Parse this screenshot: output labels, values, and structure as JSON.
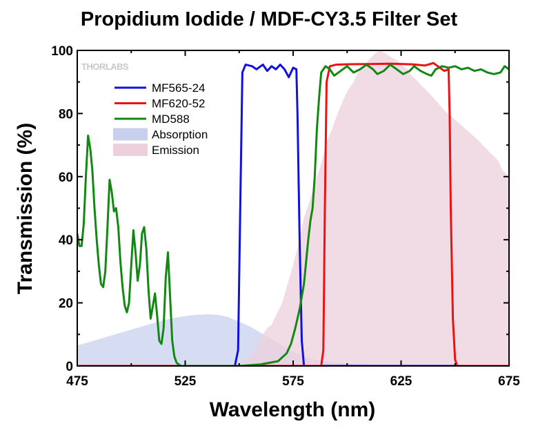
{
  "chart_data": {
    "type": "line",
    "title": "Propidium Iodide / MDF-CY3.5 Filter Set",
    "xlabel": "Wavelength (nm)",
    "ylabel": "Transmission (%)",
    "xlim": [
      475,
      675
    ],
    "ylim": [
      0,
      100
    ],
    "xticks": [
      475,
      525,
      575,
      625,
      675
    ],
    "yticks": [
      0,
      20,
      40,
      60,
      80,
      100
    ],
    "grid": false,
    "legend_position": "top-left",
    "logo": "THORLABS",
    "series": [
      {
        "name": "MF565-24",
        "kind": "line",
        "color": "#1010e0",
        "points": [
          [
            475,
            0
          ],
          [
            548,
            0
          ],
          [
            549.5,
            5
          ],
          [
            550.5,
            50
          ],
          [
            551.5,
            93
          ],
          [
            553,
            95.5
          ],
          [
            556,
            95
          ],
          [
            558,
            94
          ],
          [
            561,
            95.5
          ],
          [
            563,
            93.5
          ],
          [
            565,
            95
          ],
          [
            567,
            94
          ],
          [
            569,
            95.5
          ],
          [
            571,
            94
          ],
          [
            573,
            91.5
          ],
          [
            575,
            94.5
          ],
          [
            576.5,
            94
          ],
          [
            577,
            80
          ],
          [
            578,
            40
          ],
          [
            579,
            8
          ],
          [
            580,
            0
          ],
          [
            675,
            0
          ]
        ]
      },
      {
        "name": "MF620-52",
        "kind": "line",
        "color": "#ee1111",
        "points": [
          [
            475,
            0
          ],
          [
            588,
            0
          ],
          [
            589,
            5
          ],
          [
            589.7,
            50
          ],
          [
            590.5,
            90
          ],
          [
            592,
            95
          ],
          [
            595,
            95.5
          ],
          [
            600,
            95.6
          ],
          [
            610,
            95.7
          ],
          [
            620,
            95.8
          ],
          [
            630,
            95.6
          ],
          [
            636,
            95.2
          ],
          [
            640,
            96
          ],
          [
            645,
            93.5
          ],
          [
            647,
            94
          ],
          [
            647.5,
            80
          ],
          [
            648,
            50
          ],
          [
            649,
            15
          ],
          [
            650,
            2
          ],
          [
            651,
            0
          ],
          [
            675,
            0
          ]
        ]
      },
      {
        "name": "MD588",
        "kind": "line",
        "color": "#118811",
        "points": [
          [
            475,
            42
          ],
          [
            476,
            38
          ],
          [
            477,
            38
          ],
          [
            478,
            45
          ],
          [
            479,
            60
          ],
          [
            480,
            73
          ],
          [
            481,
            69
          ],
          [
            482,
            62
          ],
          [
            483,
            50
          ],
          [
            484,
            40
          ],
          [
            485,
            32
          ],
          [
            486,
            26
          ],
          [
            487,
            25
          ],
          [
            488,
            30
          ],
          [
            489,
            44
          ],
          [
            490,
            59
          ],
          [
            491,
            55
          ],
          [
            492,
            49
          ],
          [
            493,
            50
          ],
          [
            494,
            44
          ],
          [
            495,
            33
          ],
          [
            496,
            25
          ],
          [
            497,
            19
          ],
          [
            498,
            17
          ],
          [
            499,
            20
          ],
          [
            500,
            32
          ],
          [
            501,
            43
          ],
          [
            502,
            36
          ],
          [
            503,
            27
          ],
          [
            504,
            32
          ],
          [
            505,
            42
          ],
          [
            506,
            44
          ],
          [
            507,
            37
          ],
          [
            508,
            24
          ],
          [
            509,
            15
          ],
          [
            510,
            19
          ],
          [
            511,
            23
          ],
          [
            512,
            16
          ],
          [
            513,
            8
          ],
          [
            514,
            7
          ],
          [
            515,
            12
          ],
          [
            516,
            28
          ],
          [
            517,
            36
          ],
          [
            518,
            22
          ],
          [
            519,
            8
          ],
          [
            520,
            3
          ],
          [
            521,
            1
          ],
          [
            523,
            0
          ],
          [
            528,
            0
          ],
          [
            540,
            0
          ],
          [
            550,
            0
          ],
          [
            560,
            0.5
          ],
          [
            568,
            1.5
          ],
          [
            572,
            4
          ],
          [
            574,
            7
          ],
          [
            576,
            12
          ],
          [
            578,
            18
          ],
          [
            580,
            26
          ],
          [
            581,
            33
          ],
          [
            582,
            40
          ],
          [
            583,
            46
          ],
          [
            584,
            50
          ],
          [
            585,
            60
          ],
          [
            586,
            75
          ],
          [
            587,
            85
          ],
          [
            588,
            93
          ],
          [
            590,
            95
          ],
          [
            592,
            94
          ],
          [
            594,
            92
          ],
          [
            597,
            93.5
          ],
          [
            600,
            95
          ],
          [
            603,
            93
          ],
          [
            606,
            94
          ],
          [
            609,
            95.5
          ],
          [
            612,
            94
          ],
          [
            614,
            92.5
          ],
          [
            617,
            93.5
          ],
          [
            620,
            95.5
          ],
          [
            623,
            94
          ],
          [
            626,
            92.5
          ],
          [
            629,
            93.5
          ],
          [
            631,
            95
          ],
          [
            634,
            93.5
          ],
          [
            637,
            92.5
          ],
          [
            639,
            92
          ],
          [
            641,
            94
          ],
          [
            644,
            95
          ],
          [
            647,
            94.5
          ],
          [
            650,
            95
          ],
          [
            653,
            94
          ],
          [
            656,
            94.5
          ],
          [
            659,
            93.5
          ],
          [
            662,
            94
          ],
          [
            665,
            93
          ],
          [
            668,
            92.5
          ],
          [
            671,
            93
          ],
          [
            673,
            95
          ],
          [
            675,
            94
          ]
        ]
      },
      {
        "name": "Absorption",
        "kind": "area",
        "color": "#c8d0ee",
        "points": [
          [
            475,
            6.5
          ],
          [
            480,
            7.5
          ],
          [
            485,
            8.5
          ],
          [
            490,
            9.5
          ],
          [
            495,
            10.5
          ],
          [
            500,
            11.5
          ],
          [
            505,
            12.5
          ],
          [
            510,
            13.5
          ],
          [
            515,
            14.5
          ],
          [
            520,
            15.2
          ],
          [
            525,
            15.8
          ],
          [
            530,
            16.2
          ],
          [
            535,
            16.4
          ],
          [
            540,
            16.2
          ],
          [
            545,
            15.5
          ],
          [
            550,
            14
          ],
          [
            555,
            12.5
          ],
          [
            560,
            10.5
          ],
          [
            565,
            8.5
          ],
          [
            570,
            6.5
          ],
          [
            575,
            4.5
          ],
          [
            580,
            3
          ],
          [
            585,
            2
          ],
          [
            590,
            1.5
          ],
          [
            595,
            1
          ],
          [
            600,
            0.8
          ],
          [
            610,
            0.5
          ],
          [
            620,
            0.3
          ],
          [
            630,
            0.2
          ],
          [
            645,
            0.1
          ],
          [
            675,
            0
          ]
        ]
      },
      {
        "name": "Emission",
        "kind": "area",
        "color": "#ecd0dc",
        "points": [
          [
            475,
            0
          ],
          [
            545,
            0
          ],
          [
            550,
            1
          ],
          [
            555,
            3
          ],
          [
            558,
            6
          ],
          [
            560,
            9
          ],
          [
            563,
            12
          ],
          [
            565,
            13
          ],
          [
            567,
            16
          ],
          [
            570,
            20
          ],
          [
            572,
            25
          ],
          [
            575,
            32
          ],
          [
            578,
            40
          ],
          [
            580,
            47
          ],
          [
            583,
            53
          ],
          [
            585,
            58
          ],
          [
            588,
            64
          ],
          [
            590,
            70
          ],
          [
            593,
            75
          ],
          [
            595,
            79
          ],
          [
            598,
            84
          ],
          [
            600,
            87
          ],
          [
            603,
            90
          ],
          [
            605,
            93
          ],
          [
            608,
            95
          ],
          [
            610,
            97
          ],
          [
            613,
            99
          ],
          [
            615,
            100
          ],
          [
            618,
            99
          ],
          [
            620,
            98
          ],
          [
            623,
            97
          ],
          [
            625,
            95.5
          ],
          [
            628,
            94
          ],
          [
            630,
            92
          ],
          [
            633,
            90
          ],
          [
            635,
            88.5
          ],
          [
            638,
            86.5
          ],
          [
            640,
            85
          ],
          [
            645,
            81
          ],
          [
            650,
            78
          ],
          [
            655,
            75
          ],
          [
            660,
            72
          ],
          [
            665,
            68.5
          ],
          [
            670,
            65
          ],
          [
            672,
            62
          ],
          [
            675,
            60
          ]
        ]
      }
    ]
  }
}
